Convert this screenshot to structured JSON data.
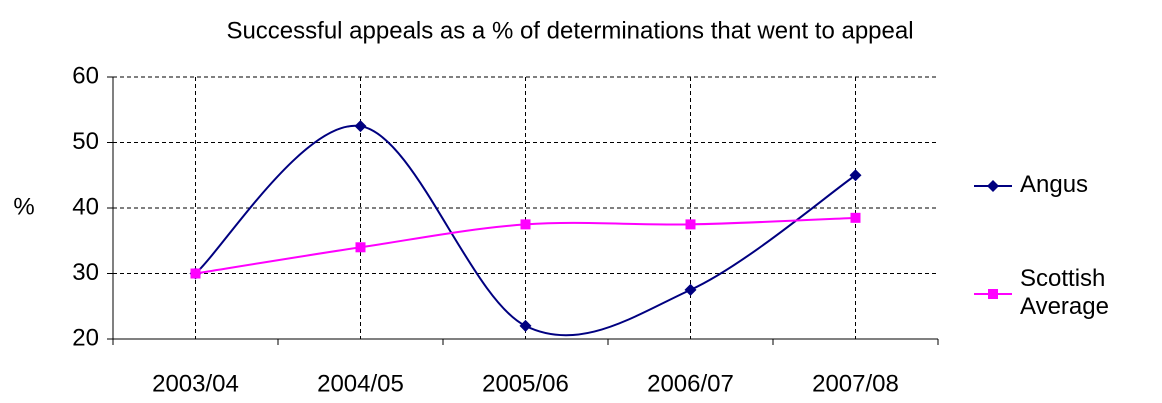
{
  "chart_data": {
    "type": "line",
    "title": "Successful appeals as a % of determinations that went to appeal",
    "ylabel": "%",
    "categories": [
      "2003/04",
      "2004/05",
      "2005/06",
      "2006/07",
      "2007/08"
    ],
    "series": [
      {
        "name": "Angus",
        "color": "#000080",
        "marker": "diamond",
        "values": [
          30,
          52.5,
          22,
          27.5,
          45
        ]
      },
      {
        "name": "Scottish Average",
        "color": "#ff00ff",
        "marker": "square",
        "values": [
          30,
          34,
          37.5,
          37.5,
          38.5
        ]
      }
    ],
    "ylim": [
      20,
      60
    ],
    "yticks": [
      20,
      30,
      40,
      50,
      60
    ],
    "grid": true,
    "smooth": true,
    "legend": "right"
  }
}
